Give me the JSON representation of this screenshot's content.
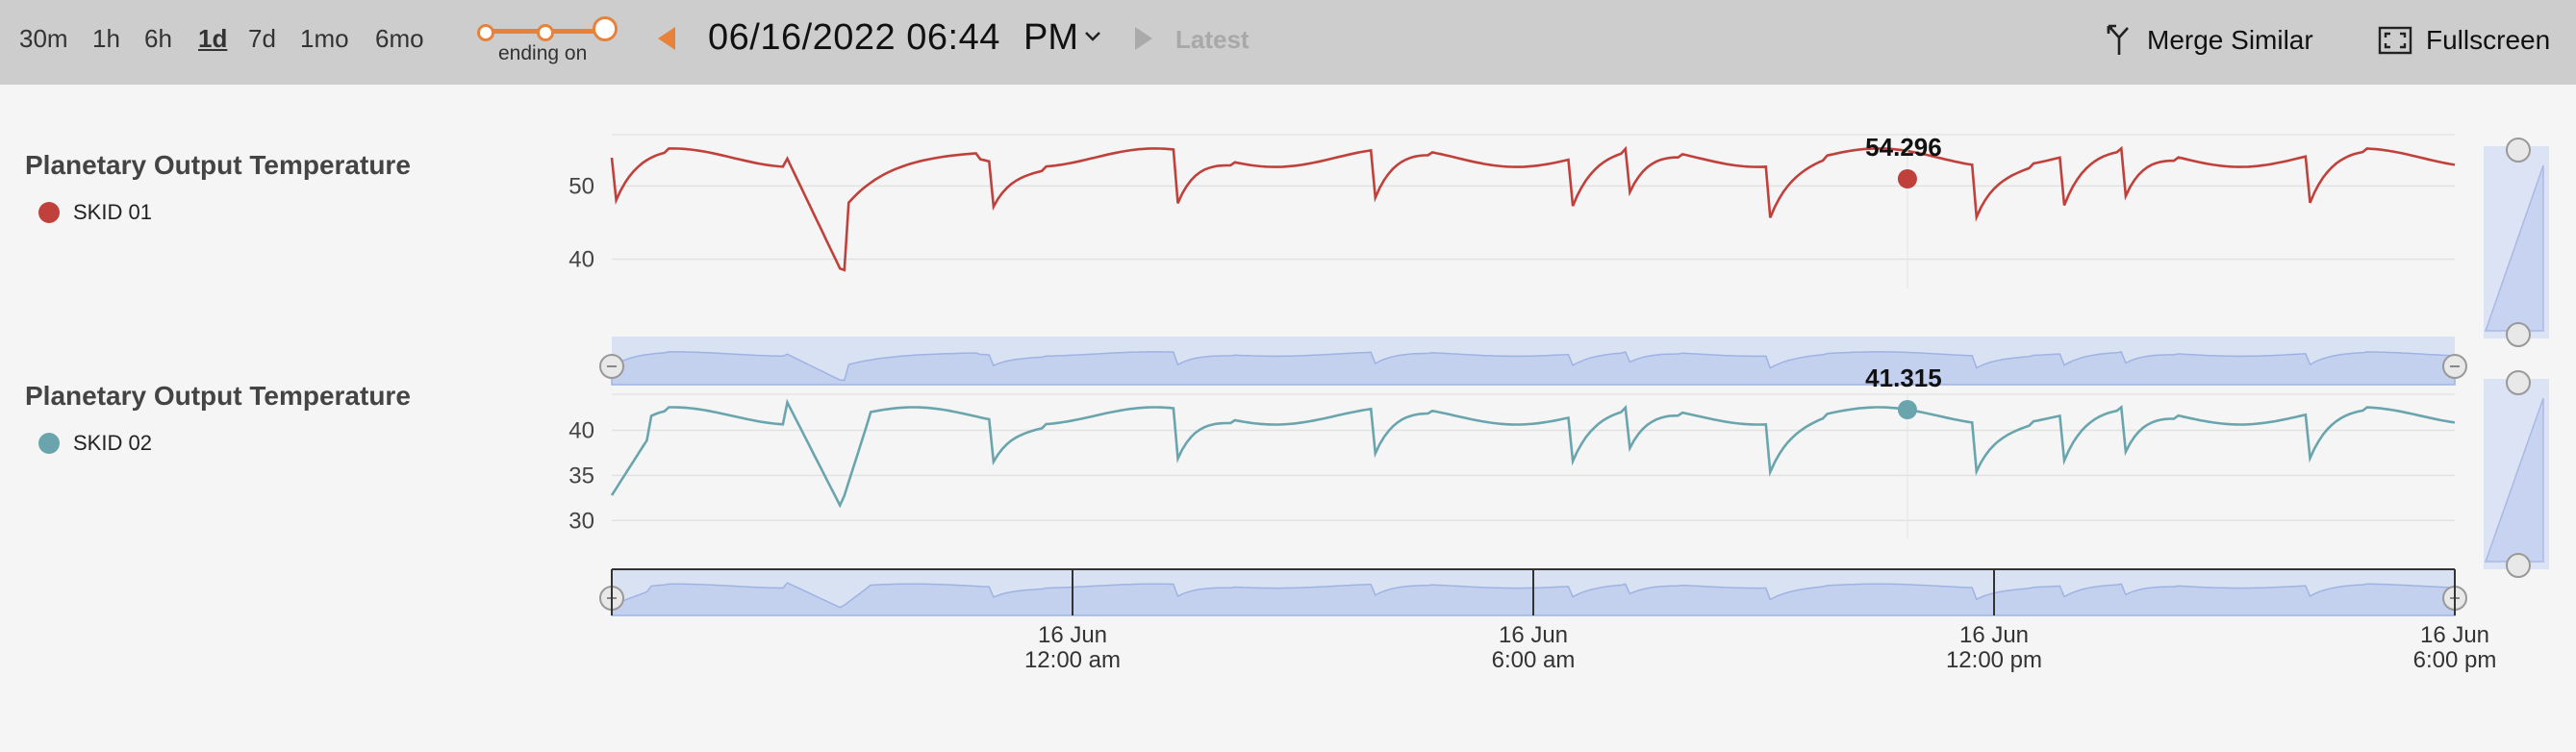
{
  "toolbar": {
    "ranges": [
      {
        "label": "30m",
        "active": false
      },
      {
        "label": "1h",
        "active": false
      },
      {
        "label": "6h",
        "active": false
      },
      {
        "label": "1d",
        "active": true
      },
      {
        "label": "7d",
        "active": false
      },
      {
        "label": "1mo",
        "active": false
      },
      {
        "label": "6mo",
        "active": false
      }
    ],
    "ending_label": "ending on",
    "datetime": "06/16/2022 06:44",
    "ampm": "PM",
    "latest_label": "Latest",
    "merge_label": "Merge Similar",
    "fullscreen_label": "Fullscreen",
    "accent_color": "#e8823a",
    "icons": {
      "prev": "triangle-left-icon",
      "next": "triangle-right-icon",
      "ampm": "chevron-down-icon",
      "merge": "merge-icon",
      "fullscreen": "fullscreen-icon"
    }
  },
  "chart_data": [
    {
      "type": "line",
      "title": "Planetary Output Temperature",
      "series": [
        {
          "name": "SKID 01",
          "color": "#c0413b"
        }
      ],
      "ylim": [
        36,
        57
      ],
      "yticks": [
        40,
        50
      ],
      "grid": true,
      "hover_value": "54.296",
      "hover_x": 0.703
    },
    {
      "type": "line",
      "title": "Planetary Output Temperature",
      "series": [
        {
          "name": "SKID 02",
          "color": "#6aa5ad"
        }
      ],
      "ylim": [
        28,
        44
      ],
      "yticks": [
        30,
        35,
        40
      ],
      "grid": true,
      "hover_value": "41.315",
      "hover_x": 0.703
    }
  ],
  "x_axis": {
    "ticks": [
      {
        "date": "16 Jun",
        "time": "12:00 am",
        "pos": 0.25
      },
      {
        "date": "16 Jun",
        "time": "6:00 am",
        "pos": 0.5
      },
      {
        "date": "16 Jun",
        "time": "12:00 pm",
        "pos": 0.75
      },
      {
        "date": "16 Jun",
        "time": "6:00 pm",
        "pos": 1.0
      }
    ]
  }
}
